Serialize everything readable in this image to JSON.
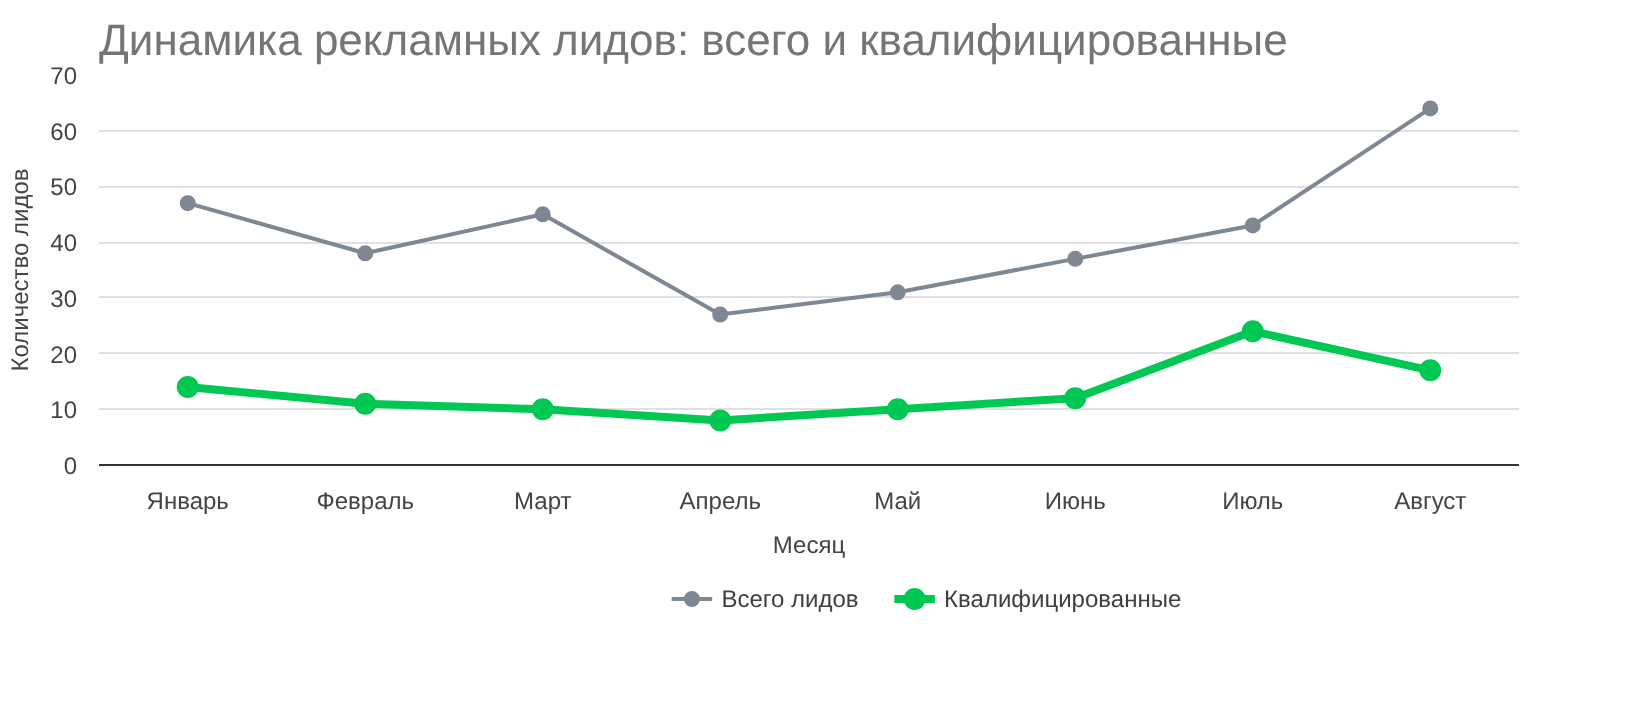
{
  "chart_data": {
    "type": "line",
    "title": "Динамика рекламных лидов: всего и квалифицированные",
    "xlabel": "Месяц",
    "ylabel": "Количество лидов",
    "categories": [
      "Январь",
      "Февраль",
      "Март",
      "Апрель",
      "Май",
      "Июнь",
      "Июль",
      "Август"
    ],
    "series": [
      {
        "name": "Всего лидов",
        "color": "#7f8793",
        "values": [
          47,
          38,
          45,
          27,
          31,
          37,
          43,
          64
        ]
      },
      {
        "name": "Квалифицированные",
        "color": "#00c853",
        "values": [
          14,
          11,
          10,
          8,
          10,
          12,
          24,
          17
        ]
      }
    ],
    "ylim": [
      0,
      70
    ],
    "yticks": [
      0,
      10,
      20,
      30,
      40,
      50,
      60,
      70
    ],
    "grid": "y",
    "legend": "bottom",
    "marker": "circle",
    "line_style": "solid"
  }
}
